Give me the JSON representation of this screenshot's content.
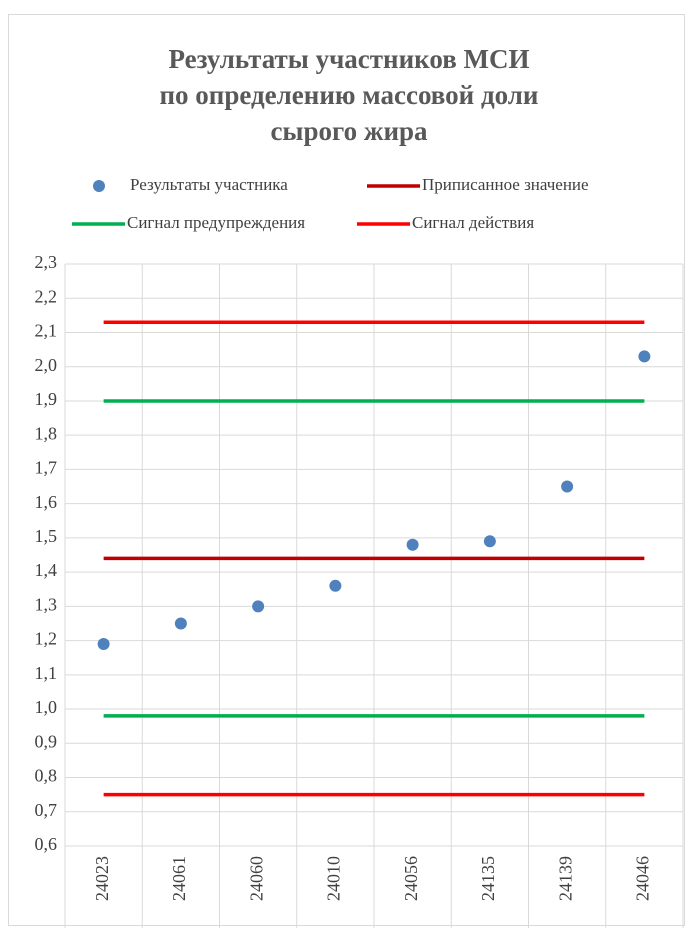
{
  "chart_data": {
    "type": "line",
    "title": [
      "Результаты участников МСИ",
      "по определению массовой доли",
      "сырого жира"
    ],
    "categories": [
      "24023",
      "24061",
      "24060",
      "24010",
      "24056",
      "24135",
      "24139",
      "24046"
    ],
    "series": [
      {
        "name": "Результаты участника",
        "color": "#4f81bd",
        "style": "markers",
        "values": [
          1.19,
          1.25,
          1.3,
          1.36,
          1.48,
          1.49,
          1.65,
          2.03
        ]
      },
      {
        "name": "Приписанное значение",
        "color": "#c00000",
        "style": "line",
        "values": [
          1.44,
          1.44,
          1.44,
          1.44,
          1.44,
          1.44,
          1.44,
          1.44
        ]
      },
      {
        "name": "Сигнал предупреждения",
        "color": "#00b050",
        "style": "line",
        "values": [
          1.9,
          1.9,
          1.9,
          1.9,
          1.9,
          1.9,
          1.9,
          1.9
        ],
        "values_lower": [
          0.98,
          0.98,
          0.98,
          0.98,
          0.98,
          0.98,
          0.98,
          0.98
        ]
      },
      {
        "name": "Сигнал действия",
        "color": "#ff0000",
        "style": "line",
        "values": [
          2.13,
          2.13,
          2.13,
          2.13,
          2.13,
          2.13,
          2.13,
          2.13
        ],
        "values_lower": [
          0.75,
          0.75,
          0.75,
          0.75,
          0.75,
          0.75,
          0.75,
          0.75
        ]
      }
    ],
    "ylim": [
      0.6,
      2.3
    ],
    "yticks": [
      {
        "value": 0.6,
        "label": "0,6"
      },
      {
        "value": 0.7,
        "label": "0,7"
      },
      {
        "value": 0.8,
        "label": "0,8"
      },
      {
        "value": 0.9,
        "label": "0,9"
      },
      {
        "value": 1.0,
        "label": "1,0"
      },
      {
        "value": 1.1,
        "label": "1,1"
      },
      {
        "value": 1.2,
        "label": "1,2"
      },
      {
        "value": 1.3,
        "label": "1,3"
      },
      {
        "value": 1.4,
        "label": "1,4"
      },
      {
        "value": 1.5,
        "label": "1,5"
      },
      {
        "value": 1.6,
        "label": "1,6"
      },
      {
        "value": 1.7,
        "label": "1,7"
      },
      {
        "value": 1.8,
        "label": "1,8"
      },
      {
        "value": 1.9,
        "label": "1,9"
      },
      {
        "value": 2.0,
        "label": "2,0"
      },
      {
        "value": 2.1,
        "label": "2,1"
      },
      {
        "value": 2.2,
        "label": "2,2"
      },
      {
        "value": 2.3,
        "label": "2,3"
      }
    ],
    "grid": true
  }
}
